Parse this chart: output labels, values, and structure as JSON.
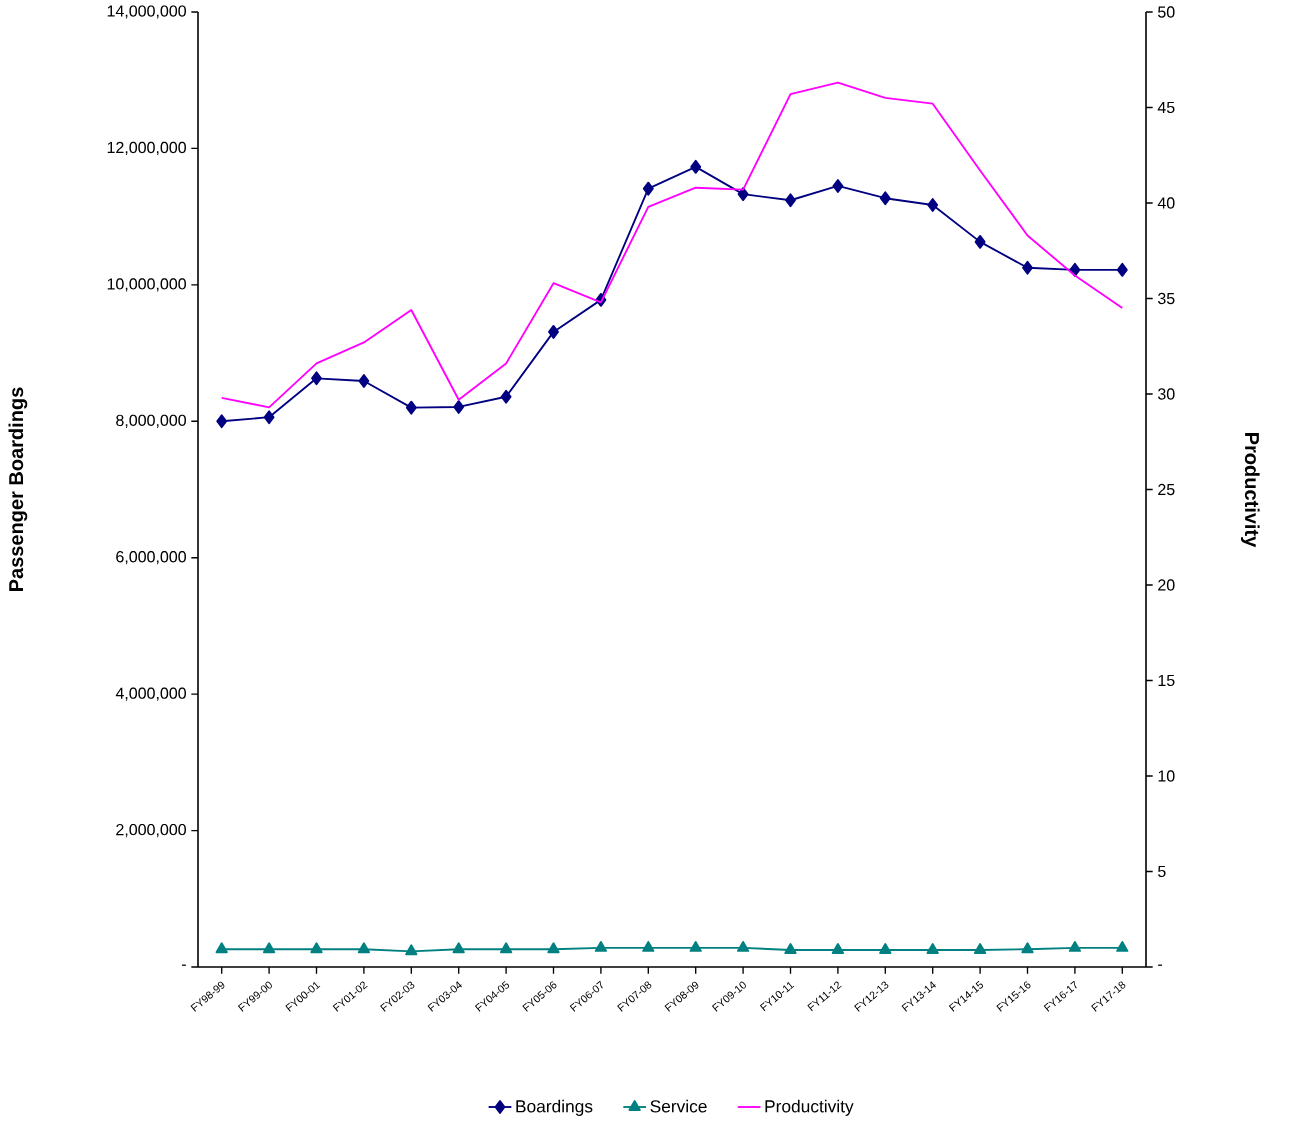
{
  "chart_data": {
    "type": "line",
    "ylabel": "Passenger Boardings",
    "y2label": "Productivity",
    "categories": [
      "FY98-99",
      "FY99-00",
      "FY00-01",
      "FY01-02",
      "FY02-03",
      "FY03-04",
      "FY04-05",
      "FY05-06",
      "FY06-07",
      "FY07-08",
      "FY08-09",
      "FY09-10",
      "FY10-11",
      "FY11-12",
      "FY12-13",
      "FY13-14",
      "FY14-15",
      "FY15-16",
      "FY16-17",
      "FY17-18"
    ],
    "series": [
      {
        "name": "Boardings",
        "color": "#000080",
        "marker": "diamond",
        "values": [
          8000000,
          8060000,
          8630000,
          8590000,
          8200000,
          8210000,
          8360000,
          9310000,
          9780000,
          11410000,
          11730000,
          11330000,
          11240000,
          11450000,
          11270000,
          11170000,
          10630000,
          10250000,
          10220000,
          10220000
        ]
      },
      {
        "name": "Service",
        "color": "#008080",
        "marker": "triangle",
        "values": [
          260000,
          260000,
          260000,
          260000,
          230000,
          260000,
          260000,
          260000,
          280000,
          280000,
          280000,
          280000,
          250000,
          250000,
          250000,
          250000,
          250000,
          260000,
          280000,
          280000
        ]
      },
      {
        "name": "Productivity",
        "color": "#ff00ff",
        "marker": "none",
        "axis": "y2",
        "values": [
          29.8,
          29.3,
          31.6,
          32.7,
          34.4,
          29.7,
          31.6,
          35.8,
          34.8,
          39.8,
          40.8,
          40.7,
          45.7,
          46.3,
          45.5,
          45.2,
          41.7,
          38.3,
          36.2,
          34.5
        ]
      }
    ],
    "ylim": [
      0,
      14000000
    ],
    "yticks": [
      {
        "value": 0,
        "label": "-"
      },
      {
        "value": 2000000,
        "label": "2,000,000"
      },
      {
        "value": 4000000,
        "label": "4,000,000"
      },
      {
        "value": 6000000,
        "label": "6,000,000"
      },
      {
        "value": 8000000,
        "label": "8,000,000"
      },
      {
        "value": 10000000,
        "label": "10,000,000"
      },
      {
        "value": 12000000,
        "label": "12,000,000"
      },
      {
        "value": 14000000,
        "label": "14,000,000"
      }
    ],
    "y2lim": [
      0,
      50
    ],
    "y2ticks": [
      {
        "value": 0,
        "label": "-"
      },
      5,
      10,
      15,
      20,
      25,
      30,
      35,
      40,
      45,
      50
    ],
    "legend": "bottom"
  }
}
